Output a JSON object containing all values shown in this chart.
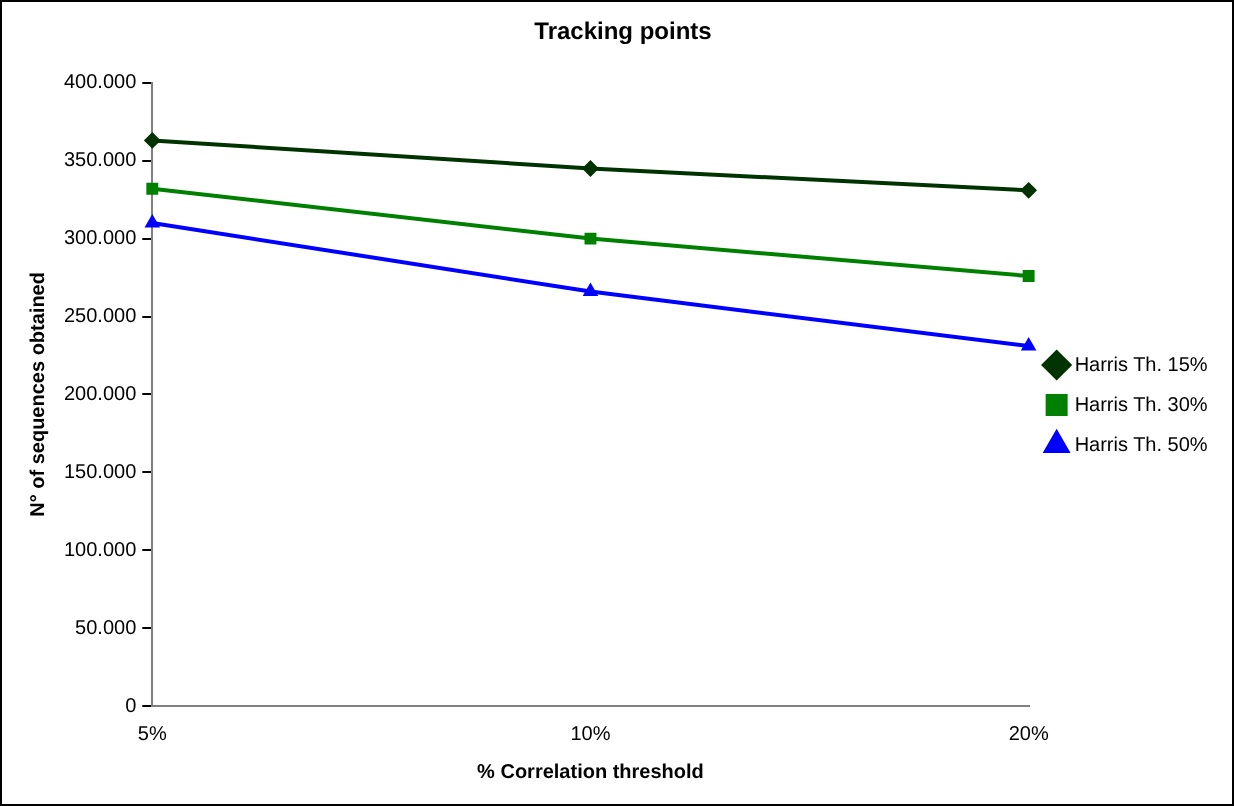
{
  "chart_data": {
    "type": "line",
    "title": "Tracking points",
    "xlabel": "% Correlation threshold",
    "ylabel": "N° of sequences obtained",
    "categories": [
      "5%",
      "10%",
      "20%"
    ],
    "series": [
      {
        "name": "Harris Th. 15%",
        "color": "#003300",
        "values": [
          363000,
          345000,
          331000
        ],
        "marker": "diamond"
      },
      {
        "name": "Harris Th. 30%",
        "color": "#008000",
        "values": [
          332000,
          300000,
          276000
        ],
        "marker": "square"
      },
      {
        "name": "Harris Th. 50%",
        "color": "#0000ff",
        "values": [
          310000,
          266000,
          231000
        ],
        "marker": "triangle"
      }
    ],
    "ylim": [
      0,
      400000
    ],
    "yticks": [
      {
        "value": 0,
        "label": "0"
      },
      {
        "value": 50000,
        "label": "50.000"
      },
      {
        "value": 100000,
        "label": "100.000"
      },
      {
        "value": 150000,
        "label": "150.000"
      },
      {
        "value": 200000,
        "label": "200.000"
      },
      {
        "value": 250000,
        "label": "250.000"
      },
      {
        "value": 300000,
        "label": "300.000"
      },
      {
        "value": 350000,
        "label": "350.000"
      },
      {
        "value": 400000,
        "label": "400.000"
      }
    ],
    "grid": false,
    "legend": "right",
    "line_style": "solid"
  }
}
